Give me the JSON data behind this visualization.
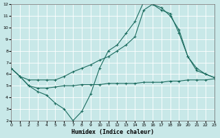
{
  "xlabel": "Humidex (Indice chaleur)",
  "bg_color": "#c8e8e8",
  "grid_color": "#ffffff",
  "line_color": "#1a6b5e",
  "xlim": [
    0,
    23
  ],
  "ylim": [
    2,
    12
  ],
  "xticks": [
    0,
    1,
    2,
    3,
    4,
    5,
    6,
    7,
    8,
    9,
    10,
    11,
    12,
    13,
    14,
    15,
    16,
    17,
    18,
    19,
    20,
    21,
    22,
    23
  ],
  "yticks": [
    2,
    3,
    4,
    5,
    6,
    7,
    8,
    9,
    10,
    11,
    12
  ],
  "line1_x": [
    0,
    1,
    2,
    3,
    4,
    5,
    6,
    7,
    8,
    9,
    10,
    11,
    12,
    13,
    14,
    15,
    16,
    17,
    18,
    19,
    20,
    21,
    22,
    23
  ],
  "line1_y": [
    6.5,
    5.8,
    5.0,
    4.5,
    4.2,
    3.5,
    3.0,
    2.0,
    2.8,
    4.3,
    6.5,
    8.0,
    8.5,
    9.5,
    10.5,
    12.2,
    12.0,
    11.7,
    11.0,
    9.8,
    7.5,
    6.3,
    6.0,
    5.7
  ],
  "line2_x": [
    0,
    1,
    2,
    3,
    4,
    5,
    6,
    7,
    8,
    9,
    10,
    11,
    12,
    13,
    14,
    15,
    16,
    17,
    18,
    19,
    20,
    21,
    22,
    23
  ],
  "line2_y": [
    6.5,
    5.8,
    5.5,
    5.5,
    5.5,
    5.5,
    5.8,
    6.2,
    6.5,
    6.8,
    7.2,
    7.5,
    8.0,
    8.5,
    9.2,
    11.5,
    12.0,
    11.5,
    11.2,
    9.5,
    7.5,
    6.5,
    6.0,
    5.7
  ],
  "line3_x": [
    0,
    1,
    2,
    3,
    4,
    5,
    6,
    7,
    8,
    9,
    10,
    11,
    12,
    13,
    14,
    15,
    16,
    17,
    18,
    19,
    20,
    21,
    22,
    23
  ],
  "line3_y": [
    6.5,
    5.8,
    5.0,
    4.8,
    4.8,
    4.9,
    5.0,
    5.0,
    5.1,
    5.1,
    5.1,
    5.2,
    5.2,
    5.2,
    5.2,
    5.3,
    5.3,
    5.3,
    5.4,
    5.4,
    5.5,
    5.5,
    5.5,
    5.6
  ]
}
